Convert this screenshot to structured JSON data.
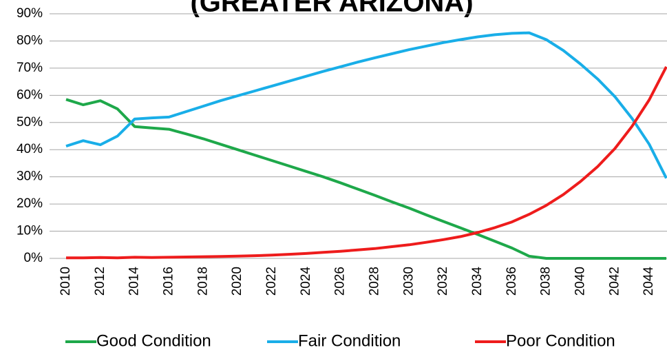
{
  "chart_data": {
    "type": "line",
    "title": "(GREATER ARIZONA)",
    "x": [
      2010,
      2011,
      2012,
      2013,
      2014,
      2015,
      2016,
      2017,
      2018,
      2019,
      2020,
      2021,
      2022,
      2023,
      2024,
      2025,
      2026,
      2027,
      2028,
      2029,
      2030,
      2031,
      2032,
      2033,
      2034,
      2035,
      2036,
      2037,
      2038,
      2039,
      2040,
      2041,
      2042,
      2043,
      2044,
      2045
    ],
    "xlim": [
      2010,
      2045
    ],
    "xticks": [
      2010,
      2012,
      2014,
      2016,
      2018,
      2020,
      2022,
      2024,
      2026,
      2028,
      2030,
      2032,
      2034,
      2036,
      2038,
      2040,
      2042,
      2044
    ],
    "ylim": [
      0,
      90
    ],
    "yticks": [
      {
        "value": 0,
        "label": "0%"
      },
      {
        "value": 10,
        "label": "10%"
      },
      {
        "value": 20,
        "label": "20%"
      },
      {
        "value": 30,
        "label": "30%"
      },
      {
        "value": 40,
        "label": "40%"
      },
      {
        "value": 50,
        "label": "50%"
      },
      {
        "value": 60,
        "label": "60%"
      },
      {
        "value": 70,
        "label": "70%"
      },
      {
        "value": 80,
        "label": "80%"
      },
      {
        "value": 90,
        "label": "90%"
      }
    ],
    "grid": true,
    "legend": "bottom",
    "series": [
      {
        "name": "Good Condition",
        "color": "#1ea84a",
        "values": [
          58.5,
          56.5,
          58,
          55,
          48.5,
          48,
          47.5,
          45.8,
          44,
          42,
          40,
          38,
          36,
          34,
          32,
          30,
          27.8,
          25.5,
          23.2,
          20.8,
          18.5,
          16,
          13.6,
          11.2,
          8.8,
          6.3,
          3.8,
          0.8,
          0,
          0,
          0,
          0,
          0,
          0,
          0,
          0
        ]
      },
      {
        "name": "Fair Condition",
        "color": "#19aee8",
        "values": [
          41.3,
          43.3,
          41.8,
          45,
          51.3,
          51.7,
          52,
          54,
          56,
          58,
          59.8,
          61.6,
          63.4,
          65.2,
          67,
          68.8,
          70.5,
          72.2,
          73.8,
          75.3,
          76.8,
          78.1,
          79.4,
          80.5,
          81.5,
          82.3,
          82.8,
          83,
          80.5,
          76.5,
          71.5,
          66,
          59.5,
          51.5,
          42,
          29.5
        ]
      },
      {
        "name": "Poor Condition",
        "color": "#ee1c1c",
        "values": [
          0.2,
          0.2,
          0.3,
          0.2,
          0.4,
          0.3,
          0.4,
          0.5,
          0.6,
          0.7,
          0.8,
          1.0,
          1.2,
          1.5,
          1.8,
          2.2,
          2.6,
          3.1,
          3.6,
          4.3,
          5.0,
          5.9,
          6.9,
          8.0,
          9.5,
          11.3,
          13.4,
          16.2,
          19.5,
          23.5,
          28.3,
          33.8,
          40.4,
          48.6,
          58.3,
          70.5
        ]
      }
    ]
  }
}
